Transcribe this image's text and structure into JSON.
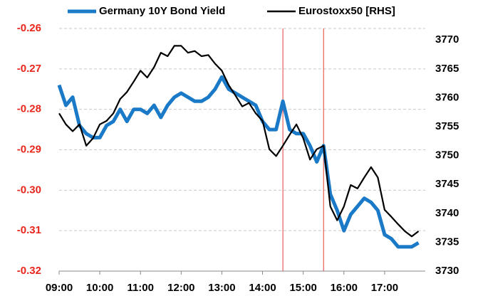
{
  "chart_data": {
    "type": "line",
    "x": [
      "09:00",
      "09:10",
      "09:20",
      "09:30",
      "09:40",
      "09:50",
      "10:00",
      "10:10",
      "10:20",
      "10:30",
      "10:40",
      "10:50",
      "11:00",
      "11:10",
      "11:20",
      "11:30",
      "11:40",
      "11:50",
      "12:00",
      "12:10",
      "12:20",
      "12:30",
      "12:40",
      "12:50",
      "13:00",
      "13:10",
      "13:20",
      "13:30",
      "13:40",
      "13:50",
      "14:00",
      "14:10",
      "14:20",
      "14:30",
      "14:40",
      "14:50",
      "15:00",
      "15:10",
      "15:20",
      "15:30",
      "15:40",
      "15:50",
      "16:00",
      "16:10",
      "16:20",
      "16:30",
      "16:40",
      "16:50",
      "17:00",
      "17:10",
      "17:20",
      "17:30",
      "17:40",
      "17:50"
    ],
    "series": [
      {
        "name": "Germany 10Y Bond Yield",
        "color": "#1a7ac7",
        "values": [
          -0.274,
          -0.279,
          -0.277,
          -0.284,
          -0.286,
          -0.287,
          -0.287,
          -0.284,
          -0.283,
          -0.28,
          -0.283,
          -0.28,
          -0.28,
          -0.281,
          -0.279,
          -0.282,
          -0.279,
          -0.277,
          -0.276,
          -0.277,
          -0.278,
          -0.278,
          -0.277,
          -0.275,
          -0.272,
          -0.275,
          -0.276,
          -0.277,
          -0.278,
          -0.279,
          -0.283,
          -0.285,
          -0.285,
          -0.278,
          -0.285,
          -0.286,
          -0.286,
          -0.289,
          -0.293,
          -0.289,
          -0.301,
          -0.305,
          -0.31,
          -0.306,
          -0.304,
          -0.302,
          -0.303,
          -0.305,
          -0.311,
          -0.312,
          -0.314,
          -0.314,
          -0.314,
          -0.313
        ]
      },
      {
        "name": "Eurostoxx50 [RHS]",
        "color": "#000000",
        "axis": "y2",
        "values": [
          3757.3,
          3755.4,
          3754.2,
          3755.4,
          3751.7,
          3753.0,
          3755.4,
          3756.0,
          3757.3,
          3759.8,
          3761.0,
          3762.8,
          3764.7,
          3763.5,
          3765.3,
          3767.8,
          3767.2,
          3769.0,
          3769.0,
          3767.8,
          3768.1,
          3767.2,
          3767.4,
          3765.9,
          3764.7,
          3762.2,
          3760.4,
          3758.5,
          3759.1,
          3757.3,
          3756.0,
          3751.1,
          3749.9,
          3751.7,
          3753.6,
          3755.4,
          3753.0,
          3749.3,
          3751.1,
          3751.7,
          3741.2,
          3738.8,
          3741.2,
          3744.9,
          3744.3,
          3746.2,
          3748.0,
          3746.2,
          3740.6,
          3739.4,
          3738.1,
          3736.9,
          3736.0,
          3736.9
        ]
      }
    ],
    "xlim": [
      "09:00",
      "18:00"
    ],
    "xticks": [
      "09:00",
      "10:00",
      "11:00",
      "12:00",
      "13:00",
      "14:00",
      "15:00",
      "16:00",
      "17:00"
    ],
    "ylim": [
      -0.32,
      -0.26
    ],
    "yticks": [
      -0.26,
      -0.27,
      -0.28,
      -0.29,
      {
        "value": -0.3,
        "label": "-0.30"
      },
      -0.31,
      -0.32
    ],
    "y2lim": [
      3730,
      3772
    ],
    "y2ticks": [
      3770,
      3765,
      3760,
      3755,
      3750,
      3745,
      3740,
      3735,
      3730
    ],
    "vlines": [
      "14:30",
      "15:30"
    ],
    "vline_color": "#e0403a",
    "ytick_color": "#e8261c",
    "grid": true,
    "legend": "top"
  }
}
